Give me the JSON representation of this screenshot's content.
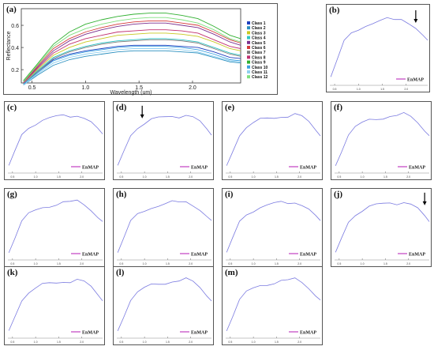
{
  "figure": {
    "main_label": "(a)",
    "main_xlabel": "Wavelength (um)",
    "main_ylabel": "Reflectance",
    "main_xticks": [
      "0.5",
      "1.0",
      "1.5",
      "2.0"
    ],
    "main_yticks": [
      "0.2",
      "0.4",
      "0.6"
    ],
    "legend_entries": [
      "Class 1",
      "Class 2",
      "Class 3",
      "Class 4",
      "Class 5",
      "Class 6",
      "Class 7",
      "Class 8",
      "Class 9",
      "Class 10",
      "Class 11",
      "Class 12"
    ],
    "legend_colors": [
      "#1f3fbf",
      "#2a8fbf",
      "#c8c820",
      "#2ec4c4",
      "#7b2f8f",
      "#d43a3a",
      "#7d7d7d",
      "#c03070",
      "#30b030",
      "#3aa0e0",
      "#8fd0f0",
      "#7fe07f"
    ],
    "enmap_color": "#7a7ae0",
    "enmap_legend_swatch": "#c040c0",
    "small_xticks": [
      "0.5",
      "1.0",
      "1.5",
      "2.0"
    ],
    "panels": [
      {
        "label": "(b)",
        "legend": "EnMAP",
        "arrow": true
      },
      {
        "label": "(c)",
        "legend": "EnMAP",
        "arrow": false
      },
      {
        "label": "(d)",
        "legend": "EnMAP",
        "arrow": true
      },
      {
        "label": "(e)",
        "legend": "EnMAP",
        "arrow": false
      },
      {
        "label": "(f)",
        "legend": "EnMAP",
        "arrow": false
      },
      {
        "label": "(g)",
        "legend": "EnMAP",
        "arrow": false
      },
      {
        "label": "(h)",
        "legend": "EnMAP",
        "arrow": false
      },
      {
        "label": "(i)",
        "legend": "EnMAP",
        "arrow": false
      },
      {
        "label": "(j)",
        "legend": "EnMAP",
        "arrow": true
      },
      {
        "label": "(k)",
        "legend": "EnMAP",
        "arrow": false
      },
      {
        "label": "(l)",
        "legend": "EnMAP",
        "arrow": true
      },
      {
        "label": "(m)",
        "legend": "EnMAP",
        "arrow": false
      }
    ]
  },
  "chart_data": [
    {
      "type": "line",
      "title": "",
      "xlabel": "Wavelength (um)",
      "ylabel": "Reflectance",
      "xlim": [
        0.4,
        2.45
      ],
      "ylim": [
        0.08,
        0.75
      ],
      "x": [
        0.42,
        0.55,
        0.7,
        0.85,
        1.0,
        1.15,
        1.3,
        1.45,
        1.6,
        1.75,
        1.9,
        2.05,
        2.2,
        2.35,
        2.45
      ],
      "series": [
        {
          "name": "Class 1",
          "values": [
            0.07,
            0.18,
            0.29,
            0.34,
            0.37,
            0.39,
            0.41,
            0.42,
            0.42,
            0.42,
            0.41,
            0.4,
            0.36,
            0.31,
            0.3
          ]
        },
        {
          "name": "Class 2",
          "values": [
            0.06,
            0.15,
            0.24,
            0.29,
            0.32,
            0.34,
            0.36,
            0.37,
            0.37,
            0.37,
            0.36,
            0.35,
            0.31,
            0.27,
            0.26
          ]
        },
        {
          "name": "Class 3",
          "values": [
            0.08,
            0.2,
            0.33,
            0.4,
            0.45,
            0.48,
            0.51,
            0.52,
            0.53,
            0.53,
            0.52,
            0.5,
            0.45,
            0.39,
            0.37
          ]
        },
        {
          "name": "Class 4",
          "values": [
            0.07,
            0.19,
            0.31,
            0.37,
            0.41,
            0.44,
            0.46,
            0.47,
            0.48,
            0.48,
            0.47,
            0.45,
            0.4,
            0.35,
            0.33
          ]
        },
        {
          "name": "Class 5",
          "values": [
            0.09,
            0.22,
            0.37,
            0.46,
            0.52,
            0.56,
            0.59,
            0.61,
            0.62,
            0.62,
            0.6,
            0.58,
            0.52,
            0.45,
            0.42
          ]
        },
        {
          "name": "Class 6",
          "values": [
            0.09,
            0.23,
            0.39,
            0.48,
            0.54,
            0.58,
            0.61,
            0.63,
            0.64,
            0.64,
            0.62,
            0.6,
            0.54,
            0.47,
            0.44
          ]
        },
        {
          "name": "Class 7",
          "values": [
            0.07,
            0.18,
            0.3,
            0.36,
            0.4,
            0.43,
            0.45,
            0.46,
            0.47,
            0.47,
            0.46,
            0.44,
            0.39,
            0.34,
            0.32
          ]
        },
        {
          "name": "Class 8",
          "values": [
            0.08,
            0.21,
            0.35,
            0.43,
            0.48,
            0.51,
            0.54,
            0.55,
            0.56,
            0.56,
            0.55,
            0.53,
            0.47,
            0.41,
            0.39
          ]
        },
        {
          "name": "Class 9",
          "values": [
            0.1,
            0.25,
            0.43,
            0.54,
            0.61,
            0.65,
            0.68,
            0.7,
            0.71,
            0.71,
            0.69,
            0.66,
            0.59,
            0.51,
            0.48
          ]
        },
        {
          "name": "Class 10",
          "values": [
            0.07,
            0.17,
            0.28,
            0.33,
            0.36,
            0.38,
            0.4,
            0.41,
            0.41,
            0.41,
            0.4,
            0.38,
            0.34,
            0.29,
            0.28
          ]
        },
        {
          "name": "Class 11",
          "values": [
            0.06,
            0.16,
            0.26,
            0.31,
            0.34,
            0.36,
            0.38,
            0.39,
            0.39,
            0.39,
            0.38,
            0.36,
            0.32,
            0.28,
            0.27
          ]
        },
        {
          "name": "Class 12",
          "values": [
            0.09,
            0.24,
            0.41,
            0.51,
            0.57,
            0.61,
            0.64,
            0.66,
            0.67,
            0.67,
            0.65,
            0.62,
            0.56,
            0.48,
            0.45
          ]
        }
      ]
    },
    {
      "type": "line",
      "title": "",
      "series": [
        {
          "name": "EnMAP",
          "values": [
            0.12,
            0.35,
            0.62,
            0.74,
            0.8,
            0.86,
            0.88,
            0.9,
            0.93,
            0.92,
            0.95,
            0.9,
            0.82,
            0.7,
            0.62
          ]
        }
      ],
      "x": [
        0.42,
        0.55,
        0.7,
        0.85,
        1.0,
        1.15,
        1.3,
        1.45,
        1.6,
        1.75,
        1.9,
        2.05,
        2.2,
        2.35,
        2.45
      ]
    }
  ]
}
